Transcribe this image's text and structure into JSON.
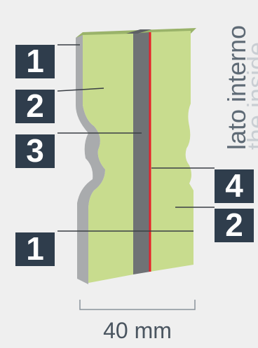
{
  "labels": {
    "badge_1_top": "1",
    "badge_2_left": "2",
    "badge_3": "3",
    "badge_1_bottom": "1",
    "badge_4": "4",
    "badge_2_right": "2"
  },
  "side_text": {
    "inside_it": "lato interno",
    "inside_en": "the inside"
  },
  "dimension": {
    "label": "40 mm"
  },
  "colors": {
    "background": "#efefef",
    "gypsum_gray": "#a9abad",
    "insulation_green": "#c8dc8e",
    "core_gray": "#6f7275",
    "membrane_red": "#e4232a",
    "badge": "#2f3d4c",
    "leader_line": "#3a3f45"
  }
}
